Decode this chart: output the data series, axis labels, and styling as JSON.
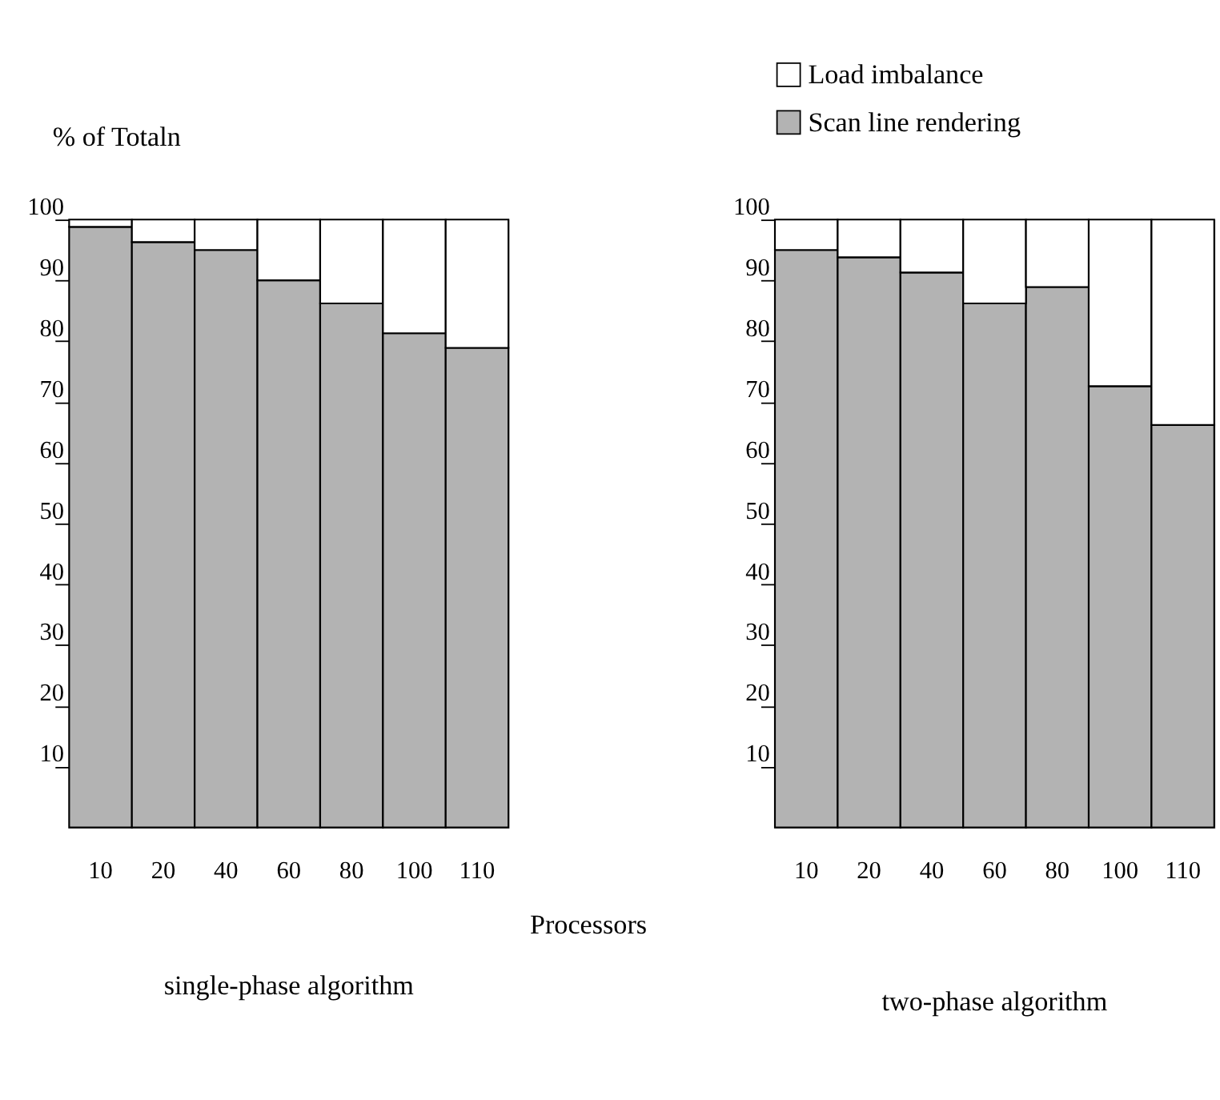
{
  "chart_data": [
    {
      "type": "bar",
      "stacked": true,
      "title": "single-phase algorithm",
      "ylabel": "% of Totaln",
      "xlabel": "Processors",
      "categories": [
        "10",
        "20",
        "40",
        "60",
        "80",
        "100",
        "110"
      ],
      "series": [
        {
          "color": "#b3b3b3",
          "values": [
            98.8,
            96.3,
            95.0,
            90.0,
            86.2,
            81.3,
            78.9
          ]
        },
        {
          "color": "#ffffff",
          "values": [
            1.2,
            3.7,
            5.0,
            10.0,
            13.8,
            18.7,
            21.1
          ]
        }
      ],
      "ylim": [
        0,
        100
      ],
      "yticks": [
        10,
        20,
        30,
        40,
        50,
        60,
        70,
        80,
        90,
        100
      ]
    },
    {
      "type": "bar",
      "stacked": true,
      "title": "two-phase algorithm",
      "categories": [
        "10",
        "20",
        "40",
        "60",
        "80",
        "100",
        "110"
      ],
      "series": [
        {
          "name": "Scan line rendering",
          "color": "#b3b3b3",
          "values": [
            95.0,
            93.8,
            91.3,
            86.2,
            88.9,
            72.6,
            66.2
          ]
        },
        {
          "name": "Load imbalance",
          "color": "#ffffff",
          "values": [
            5.0,
            6.2,
            8.7,
            13.8,
            11.1,
            27.4,
            33.8
          ]
        }
      ],
      "ylim": [
        0,
        100
      ],
      "yticks": [
        10,
        20,
        30,
        40,
        50,
        60,
        70,
        80,
        90,
        100
      ],
      "legend": "top left"
    }
  ]
}
